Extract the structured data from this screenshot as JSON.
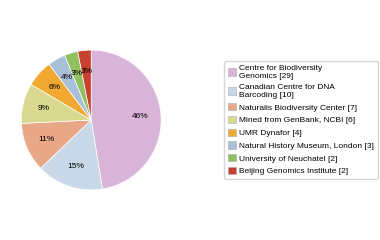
{
  "chart_data": {
    "type": "pie",
    "categories": [
      "Centre for Biodiversity\nGenomics [29]",
      "Canadian Centre for DNA\nBarcoding [10]",
      "Naturalis Biodiversity Center [7]",
      "Mined from GenBank, NCBI [6]",
      "UMR Dynafor [4]",
      "Natural History Museum, London [3]",
      "University of Neuchatel [2]",
      "Beijing Genomics Institute [2]"
    ],
    "values": [
      46,
      15,
      11,
      9,
      6,
      4,
      3,
      3
    ],
    "value_labels": [
      "46%",
      "15%",
      "11%",
      "9%",
      "6%",
      "4%",
      "3%",
      "3%"
    ],
    "colors": [
      "#d8b4d8",
      "#c8d8e8",
      "#e8a888",
      "#d8d890",
      "#f0a830",
      "#a8c0d8",
      "#90c060",
      "#c84030"
    ],
    "data_labels": true,
    "legend": "center right"
  }
}
